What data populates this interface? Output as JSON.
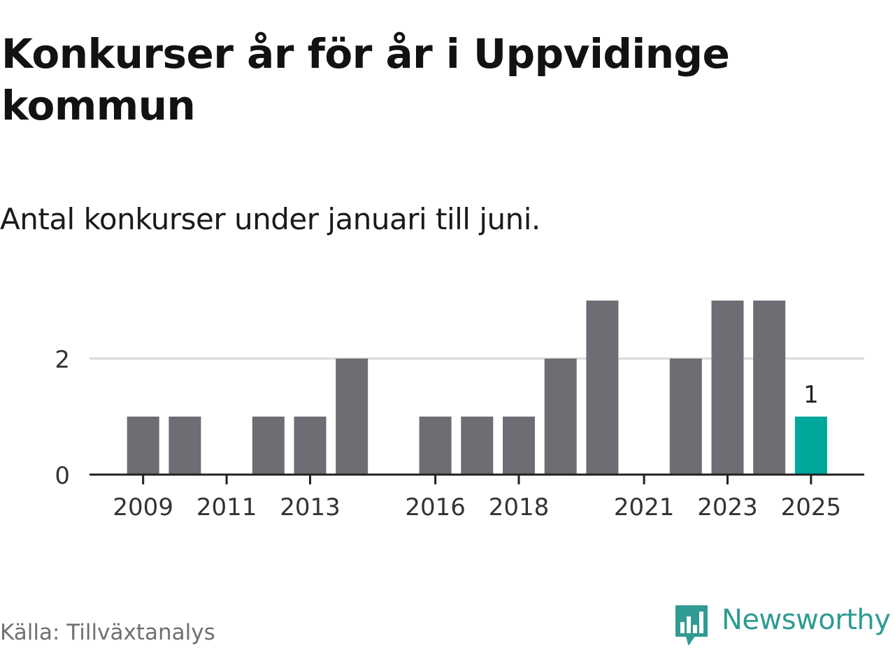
{
  "title": "Konkurser år för år i Uppvidinge kommun",
  "subtitle": "Antal konkurser under januari till juni.",
  "source": "Källa: Tillväxtanalys",
  "logo": {
    "text": "Newsworthy",
    "icon": "newsworthy-bar-chart-bubble-icon"
  },
  "colors": {
    "bar": "#6e6d73",
    "highlight": "#00a89c",
    "gridline": "#d9d9d9",
    "axis": "#222222",
    "brand": "#2f9b92"
  },
  "chart_data": {
    "type": "bar",
    "categories": [
      "2008",
      "2009",
      "2010",
      "2011",
      "2012",
      "2013",
      "2014",
      "2015",
      "2016",
      "2017",
      "2018",
      "2019",
      "2020",
      "2021",
      "2022",
      "2023",
      "2024",
      "2025"
    ],
    "values": [
      0,
      1,
      1,
      0,
      1,
      1,
      2,
      0,
      1,
      1,
      1,
      2,
      3,
      0,
      2,
      3,
      3,
      1
    ],
    "x_tick_labels": [
      "2009",
      "2011",
      "2013",
      "2016",
      "2018",
      "2021",
      "2023",
      "2025"
    ],
    "y_ticks": [
      0,
      2
    ],
    "ylim": [
      0,
      3
    ],
    "highlight_category": "2025",
    "data_labels": [
      {
        "category": "2025",
        "text": "1"
      }
    ],
    "xlabel": "",
    "ylabel": "",
    "grid": "horizontal",
    "legend": "none"
  }
}
